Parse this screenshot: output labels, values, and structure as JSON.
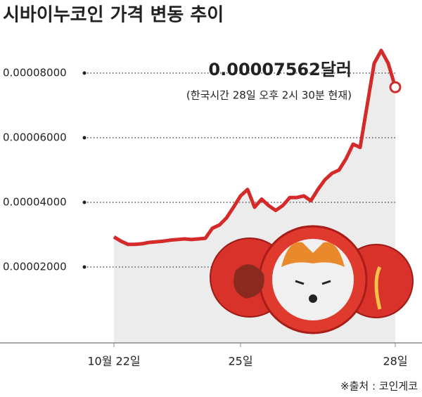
{
  "chart_data": {
    "type": "line",
    "title": "시바이누코인 가격 변동 추이",
    "annotation": "(한국시간 28일 오후 2시 30분 현재)",
    "source": "※출처 : 코인게코",
    "categories": [
      "10월 22일",
      null,
      null,
      null,
      null,
      null,
      null,
      null,
      null,
      null,
      null,
      null,
      null,
      null,
      null,
      null,
      null,
      null,
      "25일",
      null,
      null,
      null,
      null,
      null,
      null,
      null,
      null,
      null,
      null,
      null,
      null,
      null,
      null,
      null,
      null,
      null,
      null,
      null,
      null,
      null,
      "28일"
    ],
    "values": [
      2.93e-05,
      2.8e-05,
      2.7e-05,
      2.7e-05,
      2.72e-05,
      2.76e-05,
      2.78e-05,
      2.8e-05,
      2.83e-05,
      2.85e-05,
      2.87e-05,
      2.85e-05,
      2.87e-05,
      2.89e-05,
      3.2e-05,
      3.3e-05,
      3.52e-05,
      3.85e-05,
      4.2e-05,
      4.4e-05,
      3.85e-05,
      4.1e-05,
      3.9e-05,
      3.75e-05,
      3.9e-05,
      4.15e-05,
      4.15e-05,
      4.2e-05,
      4.05e-05,
      4.4e-05,
      4.7e-05,
      4.9e-05,
      5e-05,
      5.35e-05,
      5.8e-05,
      5.7e-05,
      7e-05,
      8.3e-05,
      8.7e-05,
      8.3e-05,
      7.562e-05
    ],
    "value_labels": [
      null,
      null,
      null,
      null,
      null,
      null,
      null,
      null,
      null,
      null,
      null,
      null,
      null,
      null,
      null,
      null,
      null,
      null,
      null,
      null,
      null,
      null,
      null,
      null,
      null,
      null,
      null,
      null,
      null,
      null,
      null,
      null,
      null,
      null,
      null,
      null,
      null,
      null,
      null,
      null,
      "0.00007562달러"
    ],
    "color": "#d42a2a",
    "ylim": [
      0,
      9e-05
    ],
    "yticks": [
      {
        "value": 2e-05,
        "label": "0.00002000"
      },
      {
        "value": 4e-05,
        "label": "0.00004000"
      },
      {
        "value": 6e-05,
        "label": "0.00006000"
      },
      {
        "value": 8e-05,
        "label": "0.00008000"
      }
    ],
    "grid": true
  }
}
